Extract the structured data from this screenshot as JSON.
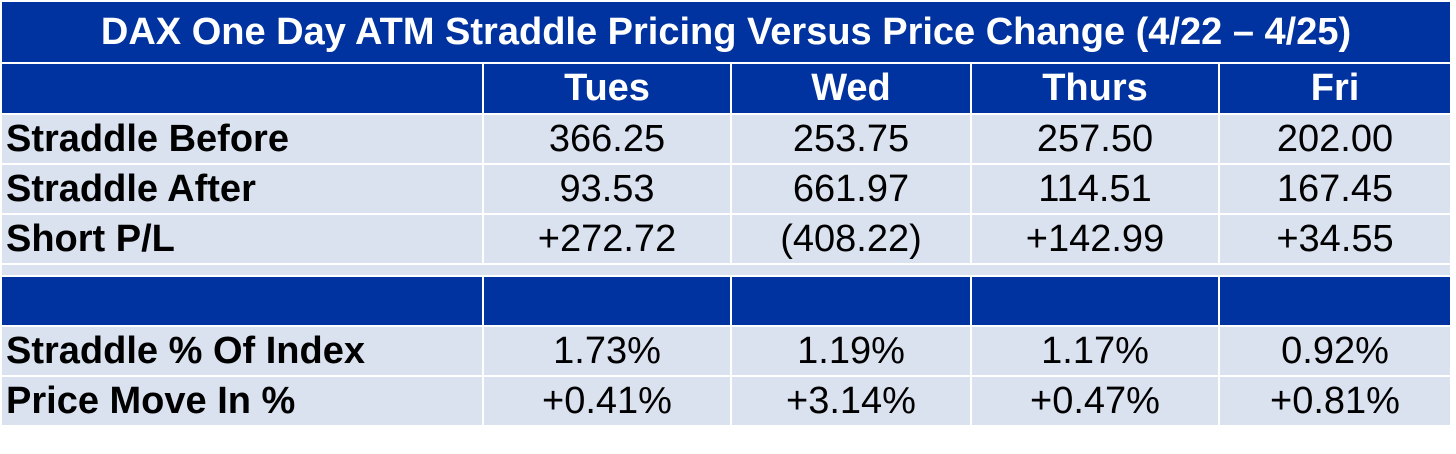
{
  "title": "DAX One Day ATM Straddle Pricing Versus Price Change (4/22 – 4/25)",
  "columns": [
    "Tues",
    "Wed",
    "Thurs",
    "Fri"
  ],
  "rows_top": [
    {
      "label": "Straddle Before",
      "values": [
        "366.25",
        "253.75",
        "257.50",
        "202.00"
      ],
      "status": [
        "plain",
        "plain",
        "plain",
        "plain"
      ]
    },
    {
      "label": "Straddle After",
      "values": [
        "93.53",
        "661.97",
        "114.51",
        "167.45"
      ],
      "status": [
        "plain",
        "plain",
        "plain",
        "plain"
      ]
    },
    {
      "label": "Short P/L",
      "values": [
        "+272.72",
        "(408.22)",
        "+142.99",
        "+34.55"
      ],
      "status": [
        "pos",
        "neg",
        "pos",
        "pos"
      ]
    }
  ],
  "rows_bottom": [
    {
      "label": "Straddle % Of Index",
      "values": [
        "1.73%",
        "1.19%",
        "1.17%",
        "0.92%"
      ],
      "status": [
        "plain",
        "plain",
        "plain",
        "plain"
      ]
    },
    {
      "label": "Price Move In %",
      "values": [
        "+0.41%",
        "+3.14%",
        "+0.47%",
        "+0.81%"
      ],
      "status": [
        "pos",
        "pos",
        "pos",
        "pos"
      ]
    }
  ],
  "colors": {
    "header_bg": "#0033a0",
    "row_bg": "#dae2f0",
    "positive": "#1a8a1a",
    "negative": "#c00000"
  }
}
